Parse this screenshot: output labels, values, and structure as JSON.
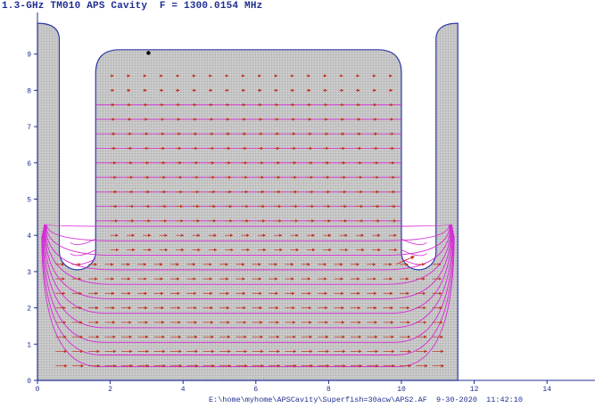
{
  "header": {
    "title": "1.3-GHz TM010 APS Cavity  F = 1300.0154 MHz"
  },
  "footer": {
    "path": "E:\\home\\myhome\\APSCavity\\Superfish=30acw\\APS2.AF",
    "date": "9-30-2020",
    "time": "11:42:10"
  },
  "colors": {
    "region_fill": "#c9c9c9",
    "boundary": "#2b3aa8",
    "field_line": "#d62ad6",
    "arrow": "#c4301c",
    "axis": "#1f2f8f"
  },
  "chart_data": {
    "type": "field-map",
    "x_ticks": [
      0,
      2,
      4,
      6,
      8,
      10,
      12,
      14
    ],
    "y_ticks": [
      0,
      1,
      2,
      3,
      4,
      5,
      6,
      7,
      8,
      9
    ],
    "xlim": [
      0,
      15.2
    ],
    "ylim": [
      0,
      9.9
    ],
    "grid": false,
    "geometry": {
      "outer_left_x": 0,
      "outer_right_x": 11.55,
      "left_stub": {
        "x0": 0.6,
        "x1": 1.6,
        "top": 9.85,
        "bottom": 3.05
      },
      "right_stub": {
        "x0": 10.0,
        "x1": 10.95,
        "top": 9.85,
        "bottom": 3.05
      },
      "cell": {
        "x0": 1.6,
        "x1": 10.0,
        "top": 9.12,
        "corner_radius": 0.65
      },
      "bottom_y": 0
    },
    "field_line_levels": [
      0.38,
      0.7,
      1.05,
      1.45,
      1.85,
      2.25,
      2.65,
      3.05,
      3.45,
      3.85,
      4.25
    ],
    "marker": {
      "x": 3.05,
      "y": 9.03
    }
  }
}
